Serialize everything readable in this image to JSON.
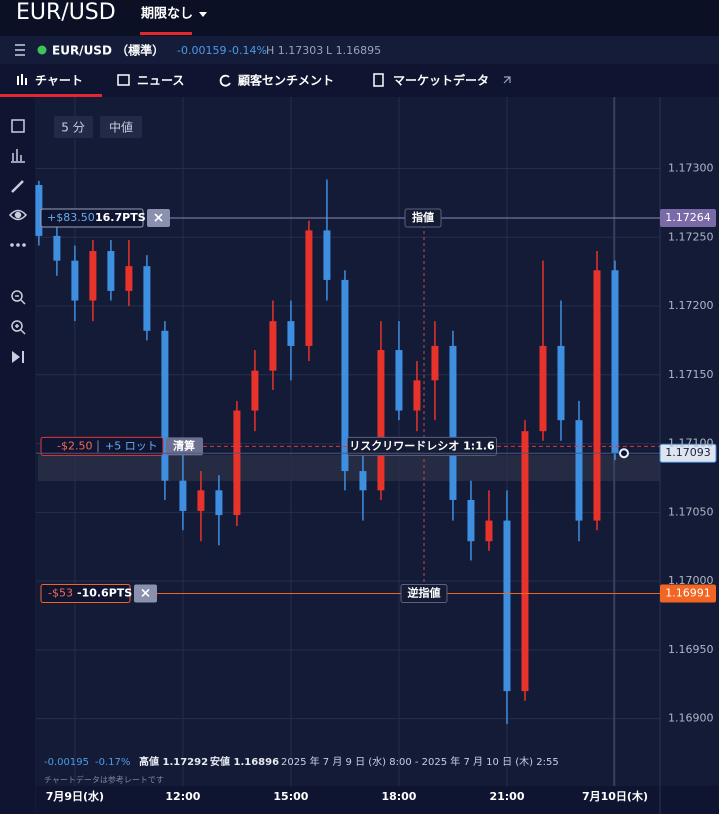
{
  "header": {
    "symbol": "EUR/USD",
    "expiry": "期限なし"
  },
  "quote": {
    "name": "EUR/USD （標準）",
    "change": "-0.00159",
    "change_pct": "-0.14%",
    "high": "H 1.17303",
    "low": "L 1.16895"
  },
  "tabs": [
    "チャート",
    "ニュース",
    "顧客センチメント",
    "マーケットデータ"
  ],
  "controls": {
    "interval": "5 分",
    "price_type": "中値"
  },
  "info": {
    "change": "-0.00195",
    "change_pct": "-0.17%",
    "high": "高値 1.17292",
    "low": "安値 1.16896",
    "range": "2025 年 7 月 9 日 (水) 8:00 - 2025 年 7 月 10 日 (木) 2:55",
    "note": "チャートデータは参考レートです"
  },
  "chart_data": {
    "type": "candlestick",
    "x": [
      8,
      8.5,
      9,
      9.5,
      10,
      10.5,
      11,
      11.5,
      12,
      12.5,
      13,
      13.5,
      14,
      14.5,
      15,
      15.5,
      16,
      16.5,
      17,
      17.5,
      18,
      18.5,
      19,
      19.5,
      20,
      20.5,
      21,
      21.5,
      22,
      22.5,
      23,
      23.5,
      24
    ],
    "open": [
      1.17288,
      1.17251,
      1.17233,
      1.17204,
      1.1724,
      1.17211,
      1.17229,
      1.17182,
      1.17073,
      1.17051,
      1.17066,
      1.17048,
      1.17124,
      1.17153,
      1.17189,
      1.17171,
      1.17255,
      1.17219,
      1.1708,
      1.17066,
      1.17168,
      1.17124,
      1.17146,
      1.17171,
      1.17059,
      1.17029,
      1.17044,
      1.1692,
      1.17109,
      1.17171,
      1.17117,
      1.17044,
      1.17226
    ],
    "high": [
      1.17291,
      1.17266,
      1.17244,
      1.17248,
      1.17248,
      1.17248,
      1.17237,
      1.17189,
      1.17095,
      1.1708,
      1.17077,
      1.17131,
      1.17168,
      1.17204,
      1.17204,
      1.17262,
      1.17292,
      1.17226,
      1.17095,
      1.17189,
      1.17189,
      1.1716,
      1.17189,
      1.17182,
      1.17073,
      1.17066,
      1.17066,
      1.17117,
      1.17233,
      1.17204,
      1.17131,
      1.1724,
      1.17233
    ],
    "low": [
      1.17244,
      1.17222,
      1.17189,
      1.17189,
      1.17204,
      1.172,
      1.17175,
      1.17059,
      1.17037,
      1.17029,
      1.17026,
      1.1704,
      1.17109,
      1.17139,
      1.17146,
      1.1716,
      1.17204,
      1.17066,
      1.17044,
      1.17059,
      1.17117,
      1.17109,
      1.17117,
      1.17044,
      1.17015,
      1.17022,
      1.16896,
      1.16913,
      1.17102,
      1.17102,
      1.17029,
      1.17037,
      1.17088
    ],
    "close": [
      1.17251,
      1.17233,
      1.17204,
      1.1724,
      1.17211,
      1.17229,
      1.17182,
      1.17073,
      1.17051,
      1.17066,
      1.17048,
      1.17124,
      1.17153,
      1.17189,
      1.17171,
      1.17255,
      1.17219,
      1.1708,
      1.17066,
      1.17168,
      1.17124,
      1.17146,
      1.17171,
      1.17059,
      1.17029,
      1.17044,
      1.1692,
      1.17109,
      1.17171,
      1.17117,
      1.17044,
      1.17226,
      1.17093
    ],
    "up_color": "#e8322c",
    "down_color": "#3f8fe0",
    "xlim": [
      7.92,
      25.25
    ],
    "xticks": [
      {
        "value": 9,
        "label": "7月9日(水)"
      },
      {
        "value": 12,
        "label": "12:00"
      },
      {
        "value": 15,
        "label": "15:00"
      },
      {
        "value": 18,
        "label": "18:00"
      },
      {
        "value": 21,
        "label": "21:00"
      },
      {
        "value": 24,
        "label": "7月10日(木)"
      }
    ],
    "ylim": [
      1.16851,
      1.17352
    ],
    "yticks": [
      {
        "value": 1.169,
        "label": "1.16900"
      },
      {
        "value": 1.1695,
        "label": "1.16950"
      },
      {
        "value": 1.17,
        "label": "1.17000"
      },
      {
        "value": 1.1705,
        "label": "1.17050"
      },
      {
        "value": 1.171,
        "label": "1.17100"
      },
      {
        "value": 1.1715,
        "label": "1.17150"
      },
      {
        "value": 1.172,
        "label": "1.17200"
      },
      {
        "value": 1.1725,
        "label": "1.17250"
      },
      {
        "value": 1.173,
        "label": "1.17300"
      }
    ],
    "grid": true,
    "limit": {
      "value": 1.17264,
      "name": "指値",
      "pnl": "+$83.50",
      "pts": "16.7PTS",
      "color": "#8f86bd"
    },
    "stop": {
      "value": 1.16991,
      "name": "逆指値",
      "pnl": "-$53",
      "pts": "-10.6PTS",
      "color": "#f0642a"
    },
    "position": {
      "value": 1.17098,
      "pnl": "-$2.50",
      "size": "+5 ロット",
      "close": "清算",
      "ratio": "リスクリワードレシオ 1:1.6",
      "color": "#e0363e"
    },
    "current": {
      "value": 1.17093,
      "color": "#dfe5ef"
    }
  }
}
